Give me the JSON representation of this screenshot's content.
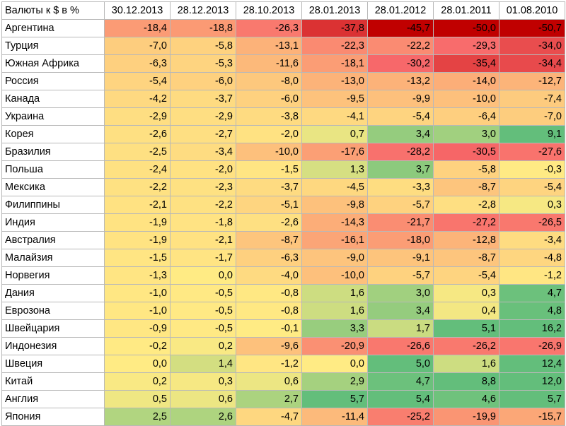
{
  "table": {
    "corner_label": "Валюты к $ в %",
    "columns": [
      "30.12.2013",
      "28.12.2013",
      "28.10.2013",
      "28.01.2013",
      "28.01.2012",
      "28.01.2011",
      "01.08.2010"
    ],
    "rows": [
      {
        "country": "Аргентина",
        "values": [
          "-18,4",
          "-18,8",
          "-26,3",
          "-37,8",
          "-45,7",
          "-50,0",
          "-50,7"
        ]
      },
      {
        "country": "Турция",
        "values": [
          "-7,0",
          "-5,8",
          "-13,1",
          "-22,3",
          "-22,2",
          "-29,3",
          "-34,0"
        ]
      },
      {
        "country": "Южная Африка",
        "values": [
          "-6,3",
          "-5,3",
          "-11,6",
          "-18,1",
          "-30,2",
          "-35,4",
          "-34,4"
        ]
      },
      {
        "country": "Россия",
        "values": [
          "-5,4",
          "-6,0",
          "-8,0",
          "-13,0",
          "-13,2",
          "-14,0",
          "-12,7"
        ]
      },
      {
        "country": "Канада",
        "values": [
          "-4,2",
          "-3,7",
          "-6,0",
          "-9,5",
          "-9,9",
          "-10,0",
          "-7,4"
        ]
      },
      {
        "country": "Украина",
        "values": [
          "-2,9",
          "-2,9",
          "-3,8",
          "-4,1",
          "-5,4",
          "-6,4",
          "-7,0"
        ]
      },
      {
        "country": "Корея",
        "values": [
          "-2,6",
          "-2,7",
          "-2,0",
          "0,7",
          "3,4",
          "3,0",
          "9,1"
        ]
      },
      {
        "country": "Бразилия",
        "values": [
          "-2,5",
          "-3,4",
          "-10,0",
          "-17,6",
          "-28,2",
          "-30,5",
          "-27,6"
        ]
      },
      {
        "country": "Польша",
        "values": [
          "-2,4",
          "-2,0",
          "-1,5",
          "1,3",
          "3,7",
          "-5,8",
          "-0,3"
        ]
      },
      {
        "country": "Мексика",
        "values": [
          "-2,2",
          "-2,3",
          "-3,7",
          "-4,5",
          "-3,3",
          "-8,7",
          "-5,4"
        ]
      },
      {
        "country": "Филиппины",
        "values": [
          "-2,1",
          "-2,2",
          "-5,1",
          "-9,8",
          "-5,7",
          "-2,8",
          "0,3"
        ]
      },
      {
        "country": "Индия",
        "values": [
          "-1,9",
          "-1,8",
          "-2,6",
          "-14,3",
          "-21,7",
          "-27,2",
          "-26,5"
        ]
      },
      {
        "country": "Австралия",
        "values": [
          "-1,9",
          "-2,1",
          "-8,7",
          "-16,1",
          "-18,0",
          "-12,8",
          "-3,4"
        ]
      },
      {
        "country": "Малайзия",
        "values": [
          "-1,5",
          "-1,7",
          "-6,3",
          "-9,0",
          "-9,1",
          "-8,7",
          "-4,8"
        ]
      },
      {
        "country": "Норвегия",
        "values": [
          "-1,3",
          "0,0",
          "-4,0",
          "-10,0",
          "-5,7",
          "-5,4",
          "-1,2"
        ]
      },
      {
        "country": "Дания",
        "values": [
          "-1,0",
          "-0,5",
          "-0,8",
          "1,6",
          "3,0",
          "0,3",
          "4,7"
        ]
      },
      {
        "country": "Еврозона",
        "values": [
          "-1,0",
          "-0,5",
          "-0,8",
          "1,6",
          "3,4",
          "0,4",
          "4,8"
        ]
      },
      {
        "country": "Швейцария",
        "values": [
          "-0,9",
          "-0,5",
          "-0,1",
          "3,3",
          "1,7",
          "5,1",
          "16,2"
        ]
      },
      {
        "country": "Индонезия",
        "values": [
          "-0,2",
          "0,2",
          "-9,6",
          "-20,9",
          "-26,6",
          "-26,2",
          "-26,9"
        ]
      },
      {
        "country": "Швеция",
        "values": [
          "0,0",
          "1,4",
          "-1,2",
          "0,0",
          "5,0",
          "1,6",
          "12,4"
        ]
      },
      {
        "country": "Китай",
        "values": [
          "0,2",
          "0,3",
          "0,6",
          "2,9",
          "4,7",
          "8,8",
          "12,0"
        ]
      },
      {
        "country": "Англия",
        "values": [
          "0,5",
          "0,6",
          "2,7",
          "5,7",
          "5,4",
          "4,6",
          "5,7"
        ]
      },
      {
        "country": "Япония",
        "values": [
          "2,5",
          "2,6",
          "-4,7",
          "-11,4",
          "-25,2",
          "-19,9",
          "-15,7"
        ]
      }
    ]
  },
  "colors": {
    "negative_extreme": "#c00000",
    "negative": "#f8696b",
    "neutral": "#ffeb84",
    "positive": "#63be7b",
    "grid": "#b8b8b8"
  }
}
